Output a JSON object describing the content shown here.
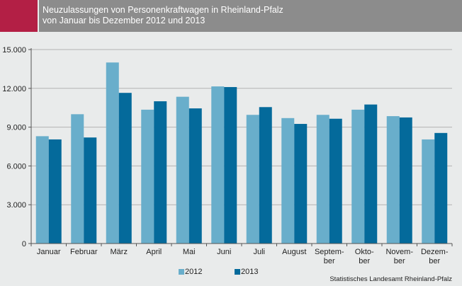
{
  "header": {
    "title_line1": "Neuzulassungen von Personenkraftwagen in Rheinland-Pfalz",
    "title_line2": "von Januar bis Dezember 2012 und 2013"
  },
  "colors": {
    "accent": "#b31f45",
    "header_bg": "#8c8c8c",
    "background": "#e9ebeb",
    "series_2012": "#69aecb",
    "series_2013": "#046a9b",
    "gridline": "#b3b3b3"
  },
  "chart_data": {
    "type": "bar",
    "categories": [
      [
        "Januar"
      ],
      [
        "Februar"
      ],
      [
        "März"
      ],
      [
        "April"
      ],
      [
        "Mai"
      ],
      [
        "Juni"
      ],
      [
        "Juli"
      ],
      [
        "August"
      ],
      [
        "Septem-",
        "ber"
      ],
      [
        "Okto-",
        "ber"
      ],
      [
        "Novem-",
        "ber"
      ],
      [
        "Dezem-",
        "ber"
      ]
    ],
    "series": [
      {
        "name": "2012",
        "color": "#69aecb",
        "values": [
          8300,
          10000,
          14000,
          10350,
          11350,
          12150,
          9950,
          9700,
          9950,
          10350,
          9850,
          8050
        ]
      },
      {
        "name": "2013",
        "color": "#046a9b",
        "values": [
          8050,
          8200,
          11650,
          11000,
          10450,
          12100,
          10550,
          9250,
          9650,
          10750,
          9750,
          8550
        ]
      }
    ],
    "yticks": [
      0,
      3000,
      6000,
      9000,
      12000,
      15000
    ],
    "ytick_labels": [
      "0",
      "3.000",
      "6.000",
      "9.000",
      "12.000",
      "15.000"
    ],
    "ylim": [
      0,
      15000
    ],
    "grid": true,
    "legend_position": "bottom-center"
  },
  "source": "Statistisches Landesamt Rheinland-Pfalz"
}
